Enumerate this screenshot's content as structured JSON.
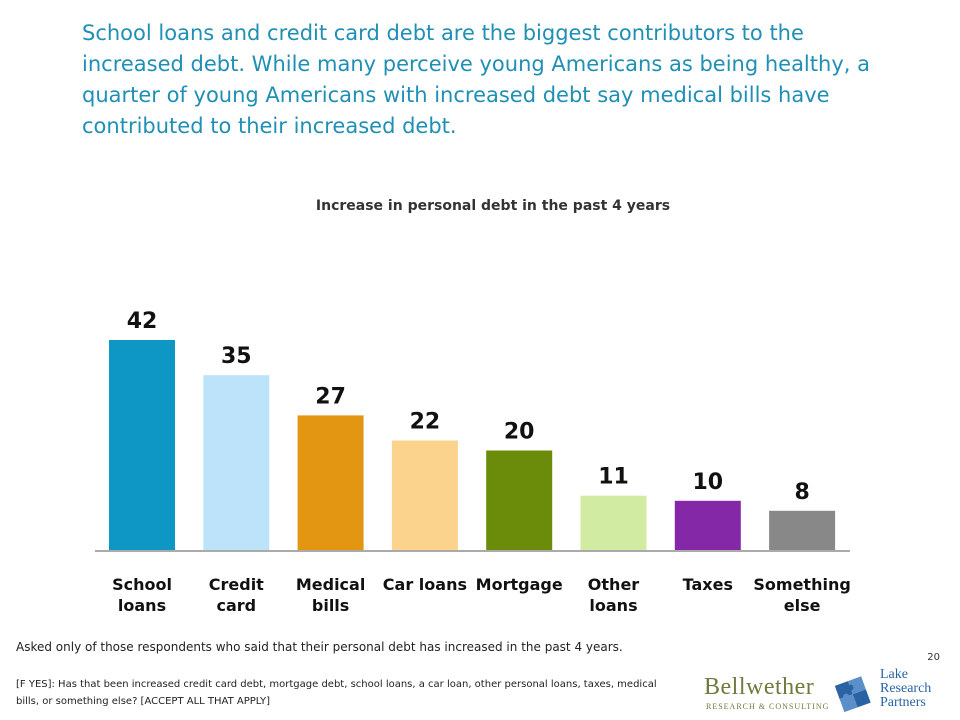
{
  "headline": "School loans and credit card debt are the biggest contributors to the increased debt. While many perceive young Americans as being healthy, a quarter of young Americans with increased debt say medical bills have contributed to their increased debt.",
  "chart_data": {
    "type": "bar",
    "title": "Increase in personal debt in the past 4 years",
    "categories": [
      "School loans",
      "Credit card",
      "Medical bills",
      "Car loans",
      "Mortgage",
      "Other loans",
      "Taxes",
      "Something else"
    ],
    "values": [
      42,
      35,
      27,
      22,
      20,
      11,
      10,
      8
    ],
    "colors": [
      "#0e97c5",
      "#bde3fb",
      "#e39611",
      "#fcd38c",
      "#6b8b0a",
      "#d2eba3",
      "#8428a8",
      "#888888"
    ],
    "ylim": [
      0,
      42
    ],
    "grid": false,
    "legend": "none"
  },
  "notes": {
    "asked_only": "Asked only of those respondents who said that their personal debt has increased in the past 4 years.",
    "question": "[F YES]: Has that been increased credit card debt, mortgage debt, school loans, a car loan, other personal loans, taxes, medical bills, or something else? [ACCEPT ALL THAT APPLY]"
  },
  "page_number": "20",
  "logos": {
    "bellwether_name": "Bellwether",
    "bellwether_sub": "RESEARCH & CONSULTING",
    "lake_name": "Lake\nResearch\nPartners"
  }
}
